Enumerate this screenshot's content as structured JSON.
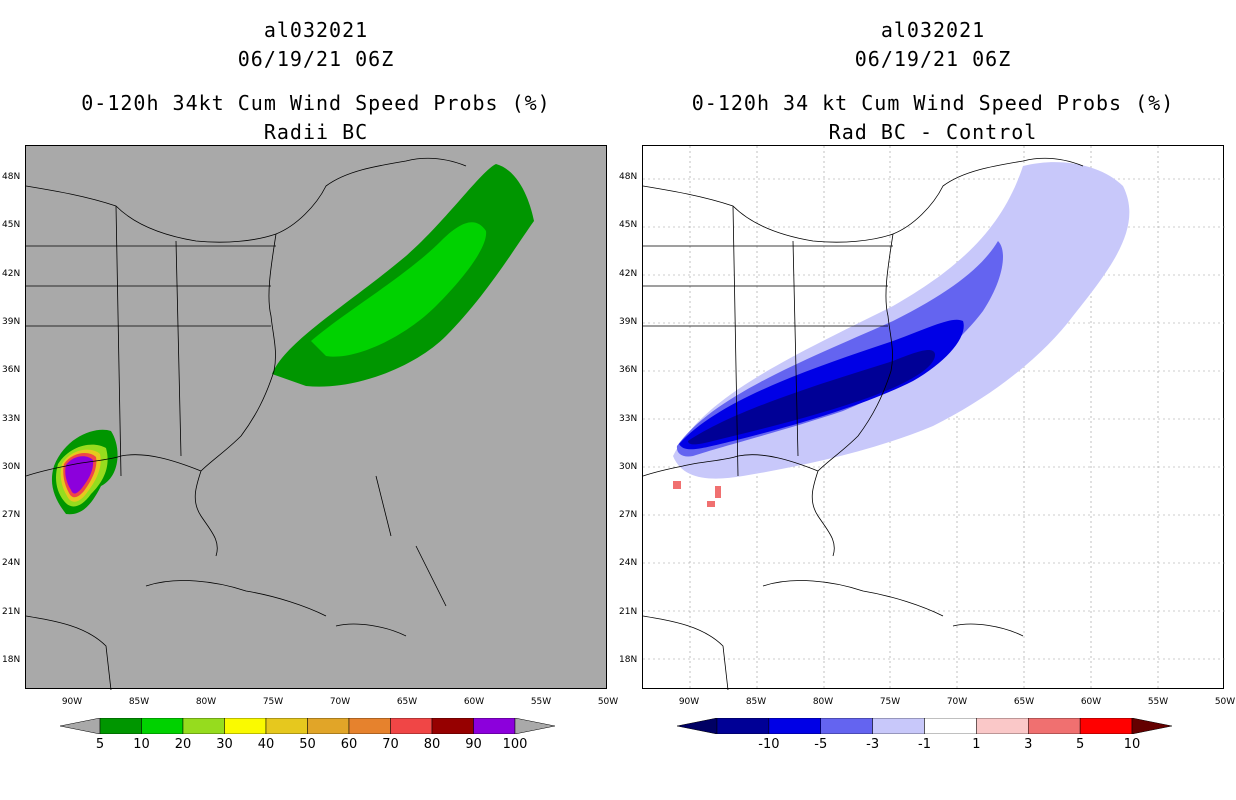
{
  "left_panel": {
    "storm_id": "al032021",
    "datetime": "06/19/21 06Z",
    "product": "0-120h 34kt Cum Wind Speed Probs (%)",
    "subtitle": "Radii BC",
    "colorbar": {
      "colors": [
        "#009600",
        "#00d200",
        "#96dc1e",
        "#fafa00",
        "#e6c81e",
        "#e1a528",
        "#e6822d",
        "#f04646",
        "#960000",
        "#8c00dc"
      ],
      "labels": [
        "5",
        "10",
        "20",
        "30",
        "40",
        "50",
        "60",
        "70",
        "80",
        "90",
        "100"
      ]
    }
  },
  "right_panel": {
    "storm_id": "al032021",
    "datetime": "06/19/21 06Z",
    "product": "0-120h 34 kt Cum Wind Speed Probs (%)",
    "subtitle": "Rad BC - Control",
    "colorbar": {
      "colors": [
        "#000096",
        "#0000e6",
        "#6464f0",
        "#c8c8fa",
        "#ffffff",
        "#fac8c8",
        "#f07070",
        "#ff0000"
      ],
      "labels": [
        "-10",
        "-5",
        "-3",
        "-1",
        "1",
        "3",
        "5",
        "10"
      ]
    }
  },
  "axes": {
    "lat_labels": [
      "48N",
      "45N",
      "42N",
      "39N",
      "36N",
      "33N",
      "30N",
      "27N",
      "24N",
      "21N",
      "18N"
    ],
    "lon_labels": [
      "90W",
      "85W",
      "80W",
      "75W",
      "70W",
      "65W",
      "60W",
      "55W",
      "50W"
    ]
  },
  "colors": {
    "map_bg_left": "#a9a9a9",
    "map_bg_right": "#ffffff"
  }
}
